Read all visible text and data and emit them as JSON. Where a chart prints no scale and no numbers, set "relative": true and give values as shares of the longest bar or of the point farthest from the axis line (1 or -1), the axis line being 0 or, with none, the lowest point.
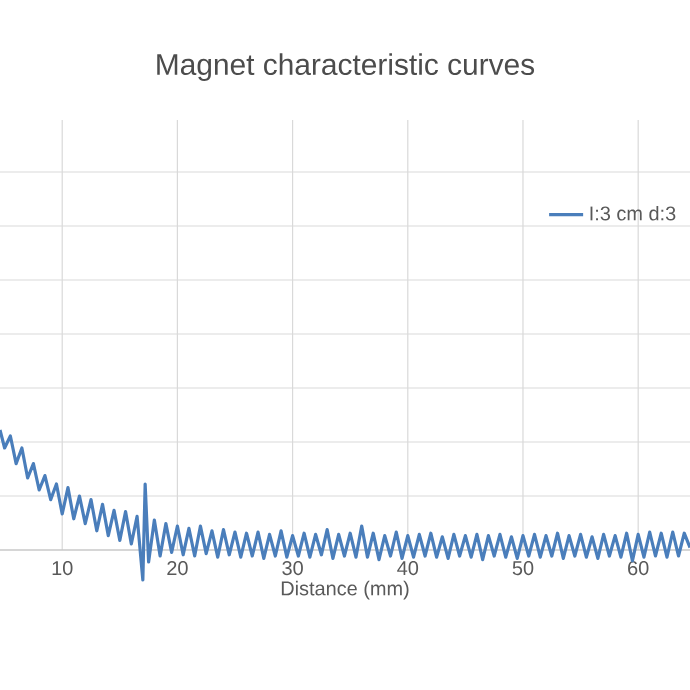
{
  "chart_data": {
    "type": "line",
    "title": "Magnet characteristic curves",
    "xlabel": "Distance (mm)",
    "relative": true,
    "xlim": [
      4.6,
      64.5
    ],
    "xticks": [
      10,
      20,
      30,
      40,
      50,
      60
    ],
    "grid": true,
    "legend": "top right",
    "line_style": "solid",
    "marker": "none",
    "series": [
      {
        "name": "I:3 cm d:3",
        "color": "#4a7ebb",
        "x": [
          4.6,
          5,
          5.5,
          6,
          6.5,
          7,
          7.5,
          8,
          8.5,
          9,
          9.5,
          10,
          10.5,
          11,
          11.5,
          12,
          12.5,
          13,
          13.5,
          14,
          14.5,
          15,
          15.5,
          16,
          16.5,
          17,
          17.2,
          17.5,
          18,
          18.5,
          19,
          19.5,
          20,
          20.5,
          21,
          21.5,
          22,
          22.5,
          23,
          23.5,
          24,
          24.5,
          25,
          25.5,
          26,
          26.5,
          27,
          27.5,
          28,
          28.5,
          29,
          29.5,
          30,
          30.5,
          31,
          31.5,
          32,
          32.5,
          33,
          33.5,
          34,
          34.5,
          35,
          35.5,
          36,
          36.5,
          37,
          37.5,
          38,
          38.5,
          39,
          39.5,
          40,
          40.5,
          41,
          41.5,
          42,
          42.5,
          43,
          43.5,
          44,
          44.5,
          45,
          45.5,
          46,
          46.5,
          47,
          47.5,
          48,
          48.5,
          49,
          49.5,
          50,
          50.5,
          51,
          51.5,
          52,
          52.5,
          53,
          53.5,
          54,
          54.5,
          55,
          55.5,
          56,
          56.5,
          57,
          57.5,
          58,
          58.5,
          59,
          59.5,
          60,
          60.5,
          61,
          61.5,
          62,
          62.5,
          63,
          63.5,
          64,
          64.5
        ],
        "values": [
          1.0,
          0.85,
          0.95,
          0.72,
          0.85,
          0.6,
          0.72,
          0.5,
          0.62,
          0.42,
          0.55,
          0.3,
          0.52,
          0.26,
          0.45,
          0.22,
          0.42,
          0.16,
          0.38,
          0.12,
          0.33,
          0.08,
          0.32,
          0.05,
          0.28,
          -0.25,
          0.55,
          -0.1,
          0.25,
          -0.05,
          0.22,
          -0.02,
          0.2,
          -0.04,
          0.18,
          -0.05,
          0.2,
          -0.03,
          0.16,
          -0.06,
          0.17,
          -0.04,
          0.15,
          -0.06,
          0.14,
          -0.05,
          0.15,
          -0.07,
          0.13,
          -0.05,
          0.16,
          -0.06,
          0.12,
          -0.05,
          0.14,
          -0.06,
          0.13,
          -0.04,
          0.17,
          -0.07,
          0.13,
          -0.05,
          0.14,
          -0.06,
          0.2,
          -0.06,
          0.14,
          -0.08,
          0.12,
          -0.05,
          0.15,
          -0.07,
          0.12,
          -0.06,
          0.13,
          -0.05,
          0.14,
          -0.06,
          0.11,
          -0.07,
          0.13,
          -0.05,
          0.12,
          -0.06,
          0.13,
          -0.08,
          0.12,
          -0.05,
          0.13,
          -0.06,
          0.11,
          -0.07,
          0.12,
          -0.05,
          0.13,
          -0.06,
          0.12,
          -0.05,
          0.14,
          -0.07,
          0.12,
          -0.05,
          0.13,
          -0.06,
          0.11,
          -0.07,
          0.13,
          -0.05,
          0.12,
          -0.06,
          0.14,
          -0.09,
          0.13,
          -0.06,
          0.15,
          -0.05,
          0.14,
          -0.06,
          0.15,
          -0.05,
          0.14,
          0.02
        ]
      }
    ]
  }
}
